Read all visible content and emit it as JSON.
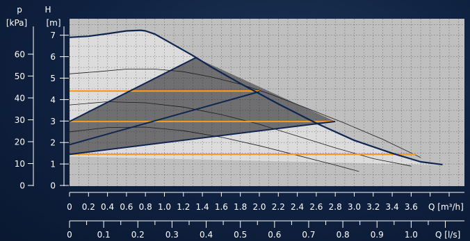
{
  "chart_data": {
    "type": "line",
    "title": "",
    "axes": {
      "pressure": {
        "symbol": "p",
        "unit": "[kPa]",
        "ticks": [
          0,
          10,
          20,
          30,
          40,
          50,
          60
        ]
      },
      "head": {
        "symbol": "H",
        "unit": "[m]",
        "ticks": [
          0,
          1,
          2,
          3,
          4,
          5,
          6,
          7
        ],
        "ylim": [
          0,
          7.7
        ]
      },
      "flow_m3h": {
        "unit": "Q [m³/h]",
        "ticks": [
          "0",
          "0.2",
          "0.4",
          "0.6",
          "0.8",
          "1.0",
          "1.2",
          "1.4",
          "1.6",
          "1.8",
          "2.0",
          "2.2",
          "2.4",
          "2.6",
          "2.8",
          "3.0",
          "3.2",
          "3.4",
          "3.6"
        ],
        "xlim": [
          0,
          4.2
        ]
      },
      "flow_ls": {
        "unit": "Q [l/s]",
        "ticks": [
          "0",
          "0.1",
          "0.2",
          "0.3",
          "0.4",
          "0.5",
          "0.6",
          "0.7",
          "0.8",
          "0.9",
          "1.0"
        ]
      }
    },
    "grid": true,
    "max_curve": {
      "x": [
        0,
        0.2,
        0.4,
        0.6,
        0.75,
        0.8,
        0.9,
        1.1,
        1.3,
        1.5,
        1.8,
        2.2,
        2.6,
        3.0,
        3.4,
        3.7,
        3.93
      ],
      "y": [
        6.9,
        6.95,
        7.07,
        7.2,
        7.23,
        7.2,
        7.05,
        6.55,
        6.05,
        5.5,
        4.75,
        3.8,
        2.9,
        2.1,
        1.5,
        1.1,
        0.97
      ]
    },
    "speed_curves": [
      {
        "x": [
          0,
          0.3,
          0.6,
          0.9,
          1.2,
          1.5,
          1.8,
          2.1,
          2.5,
          2.9,
          3.3,
          3.7
        ],
        "y": [
          5.2,
          5.3,
          5.42,
          5.42,
          5.3,
          5.05,
          4.72,
          4.28,
          3.6,
          2.9,
          2.15,
          1.3
        ]
      },
      {
        "x": [
          0,
          0.4,
          0.8,
          1.2,
          1.6,
          2.0,
          2.4,
          2.8,
          3.2,
          3.6
        ],
        "y": [
          3.75,
          3.9,
          3.85,
          3.65,
          3.3,
          2.85,
          2.3,
          1.75,
          1.25,
          0.9
        ]
      },
      {
        "x": [
          0,
          0.4,
          0.8,
          1.2,
          1.6,
          2.0,
          2.4,
          2.8,
          3.05
        ],
        "y": [
          2.5,
          2.7,
          2.72,
          2.55,
          2.25,
          1.85,
          1.4,
          0.95,
          0.65
        ]
      }
    ],
    "proportional_lines": [
      {
        "x": [
          0,
          1.33
        ],
        "y": [
          2.98,
          5.95
        ]
      },
      {
        "x": [
          0,
          2.0
        ],
        "y": [
          1.9,
          4.37
        ]
      },
      {
        "x": [
          0,
          2.8
        ],
        "y": [
          1.45,
          2.98
        ]
      }
    ],
    "constant_pressure_lines": [
      {
        "y": 4.4,
        "x": [
          0,
          2.0
        ]
      },
      {
        "y": 2.98,
        "x": [
          0,
          2.8
        ]
      },
      {
        "y": 1.45,
        "x": [
          0,
          3.65
        ]
      }
    ],
    "colors": {
      "plot_background": "#bfbfbf",
      "region_dark": "#6f6f72",
      "region_light": "#dcdcdc",
      "curve_line": "#0e2550",
      "constant_line": "#f39a1e",
      "thin_line": "#1a1a1a",
      "grid": "#2a2a2a",
      "text": "#ffffff"
    }
  }
}
